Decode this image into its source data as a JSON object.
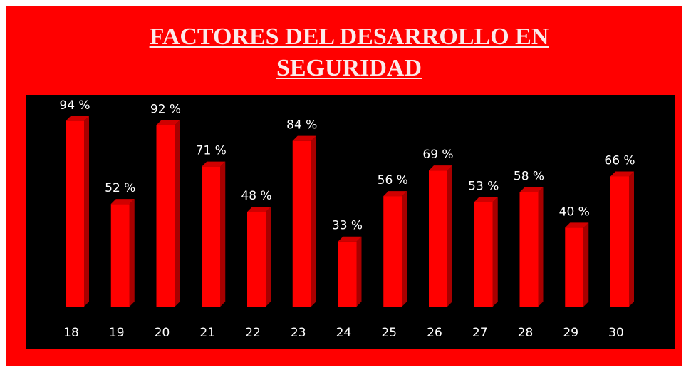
{
  "chart_data": {
    "type": "bar",
    "title": "FACTORES DEL DESARROLLO EN SEGURIDAD",
    "categories": [
      "18",
      "19",
      "20",
      "21",
      "22",
      "23",
      "24",
      "25",
      "26",
      "27",
      "28",
      "29",
      "30"
    ],
    "values": [
      94,
      52,
      92,
      71,
      48,
      84,
      33,
      56,
      69,
      53,
      58,
      40,
      66
    ],
    "value_labels": [
      "94 %",
      "52 %",
      "92 %",
      "71 %",
      "48 %",
      "84 %",
      "33 %",
      "56 %",
      "69 %",
      "53 %",
      "58 %",
      "40 %",
      "66 %"
    ],
    "color": "#ff0000"
  }
}
